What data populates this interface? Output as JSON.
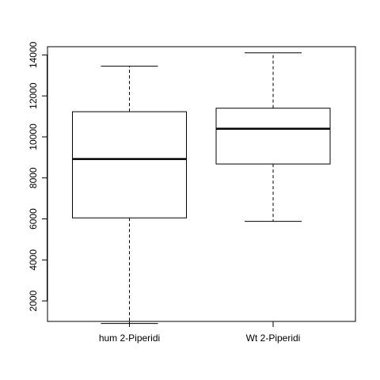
{
  "chart_data": {
    "type": "boxplot",
    "title": "",
    "xlabel": "",
    "ylabel": "",
    "ylim": [
      1000,
      14400
    ],
    "y_ticks": [
      2000,
      4000,
      6000,
      8000,
      10000,
      12000,
      14000
    ],
    "y_tick_labels": [
      "2000",
      "4000",
      "6000",
      "8000",
      "10000",
      "12000",
      "14000"
    ],
    "categories": [
      "hum 2-Piperidi",
      "Wt 2-Piperidi"
    ],
    "boxes": [
      {
        "name": "hum 2-Piperidi",
        "whisker_low": 900,
        "q1": 6050,
        "median": 8920,
        "q3": 11230,
        "whisker_high": 13450
      },
      {
        "name": "Wt 2-Piperidi",
        "whisker_low": 5880,
        "q1": 8680,
        "median": 10400,
        "q3": 11400,
        "whisker_high": 14100
      }
    ],
    "grid": false,
    "colors": {
      "stroke": "#000000",
      "background": "#ffffff"
    }
  }
}
